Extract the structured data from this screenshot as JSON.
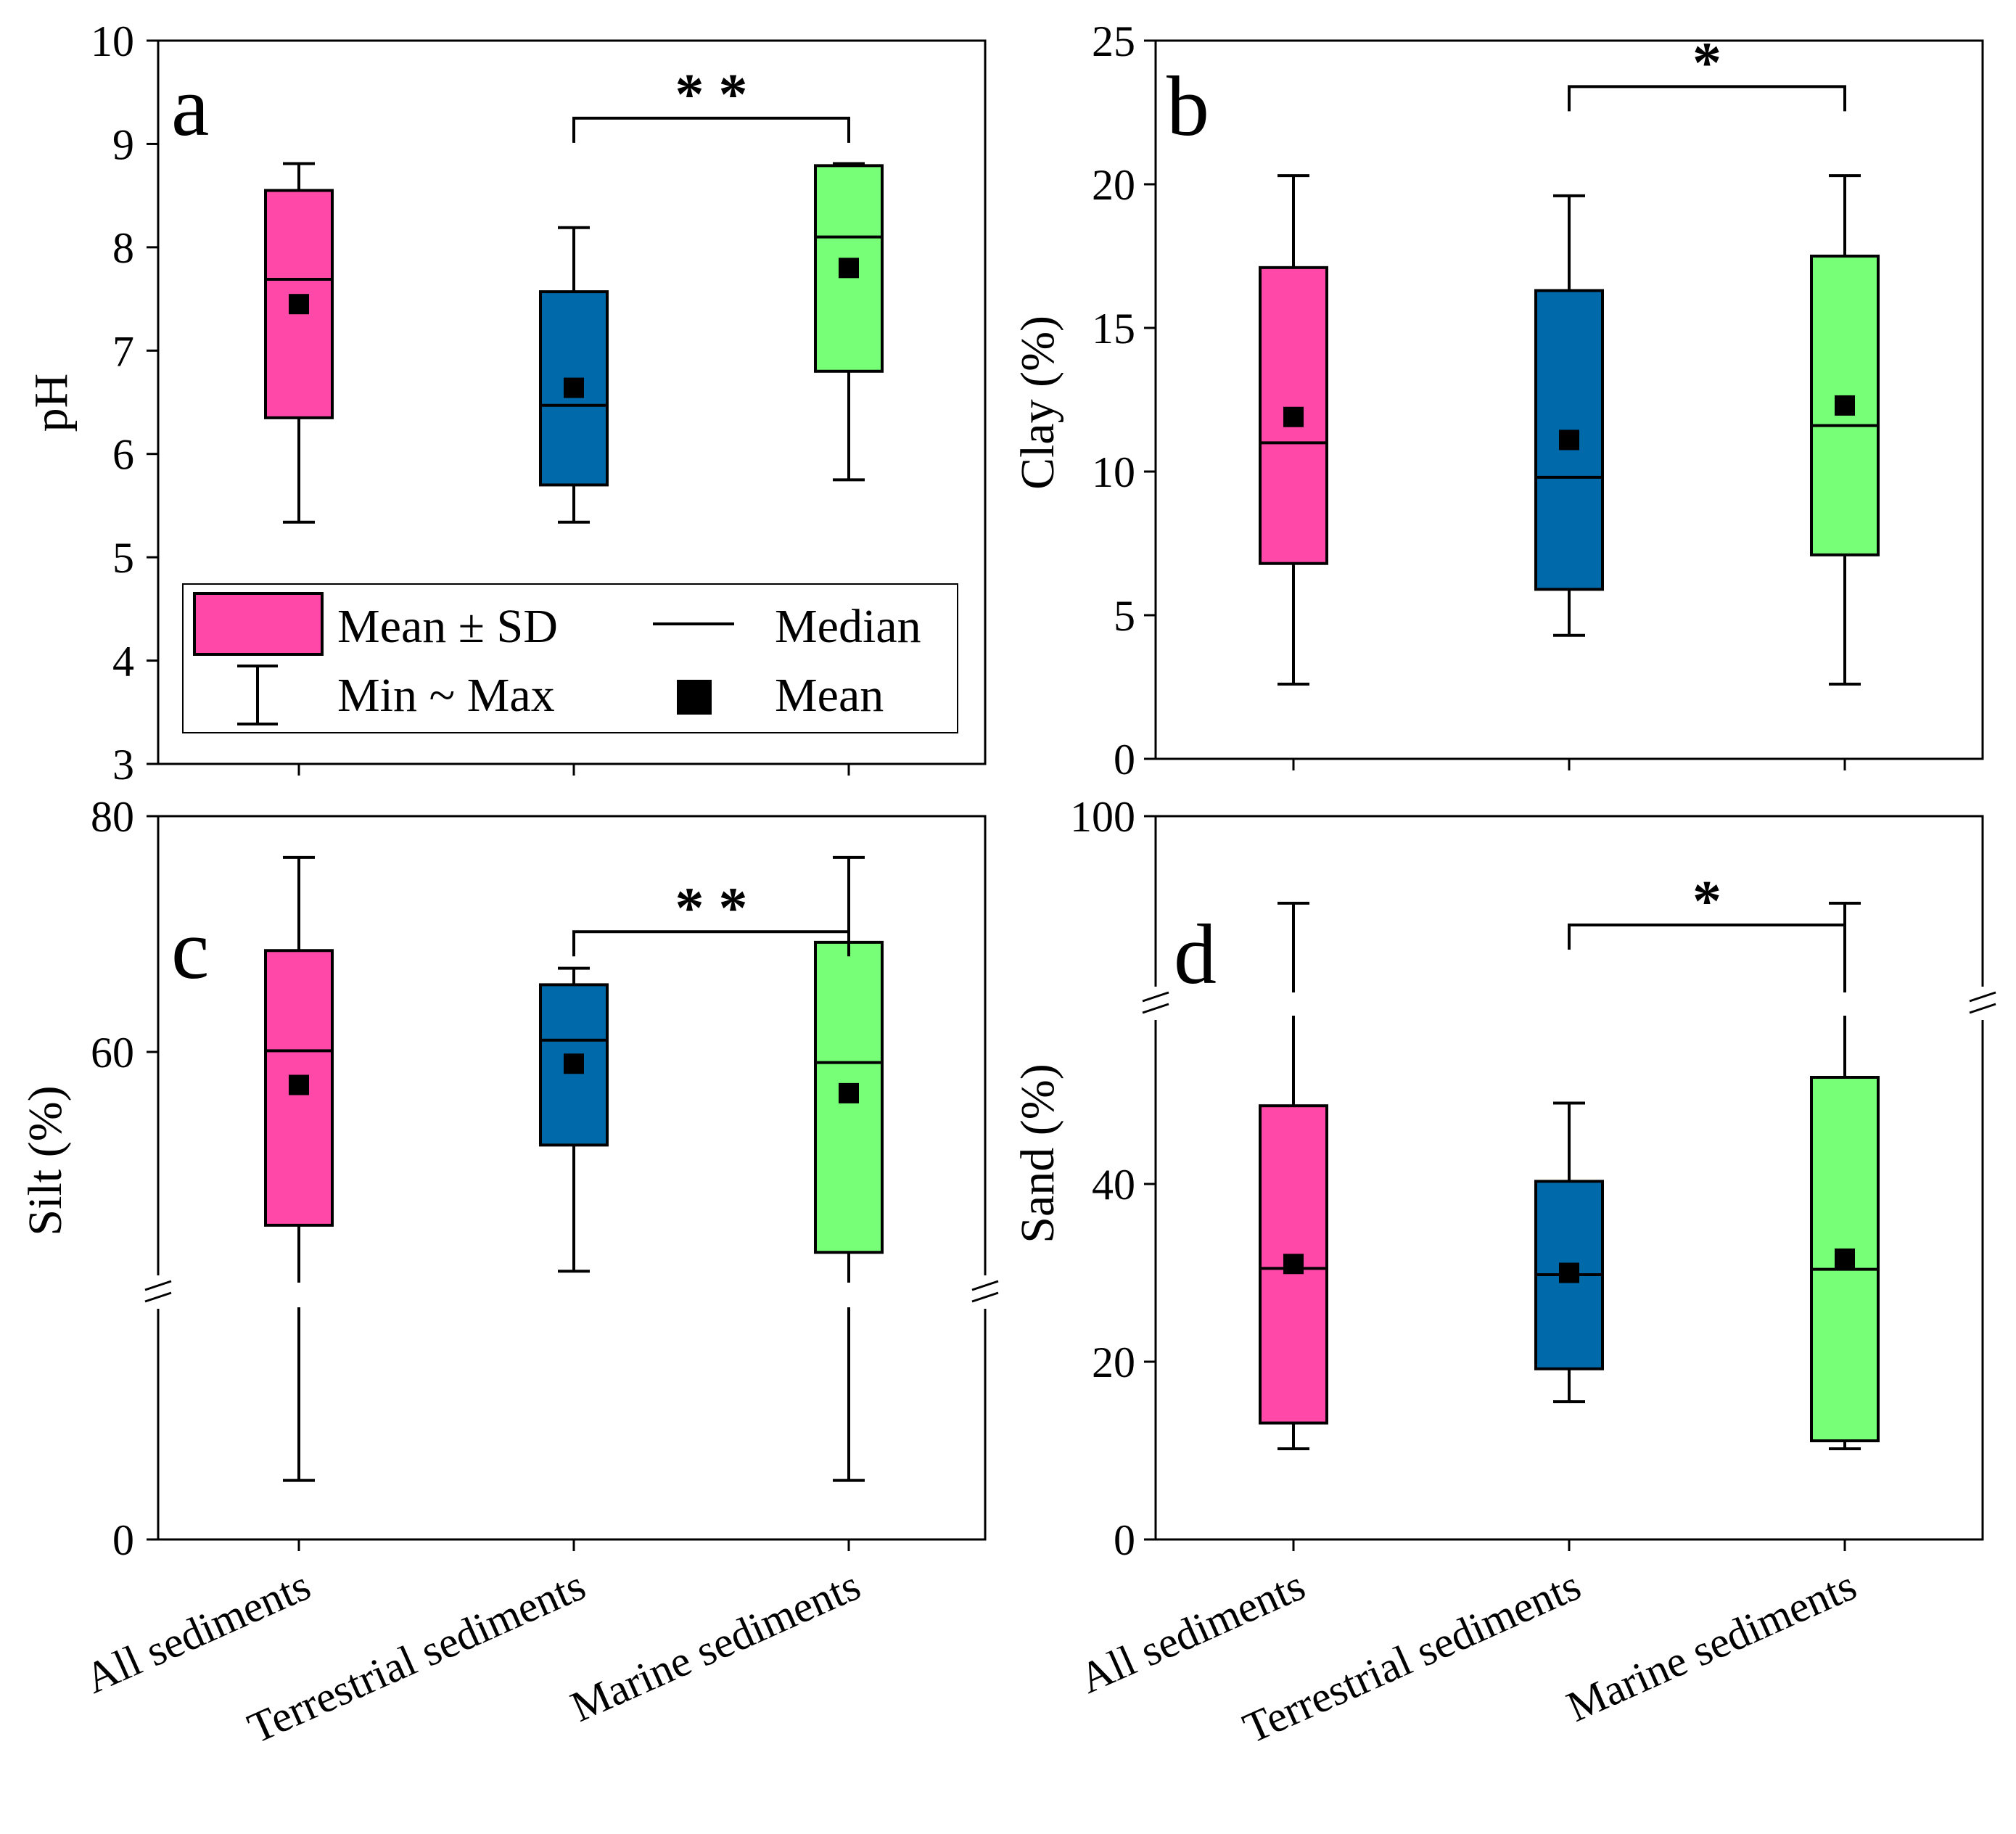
{
  "colors": {
    "all": "#FF48A8",
    "terrestrial": "#0069AA",
    "marine": "#78FF78",
    "stroke": "#000000"
  },
  "legend": {
    "mean_sd": "Mean ± SD",
    "min_max": "Min ~ Max",
    "median": "Median",
    "mean": "Mean"
  },
  "chart_data": [
    {
      "panel": "a",
      "type": "box",
      "ylabel": "pH",
      "ylim": [
        3,
        10
      ],
      "yticks": [
        "3",
        "4",
        "5",
        "6",
        "7",
        "8",
        "9",
        "10"
      ],
      "categories": [
        "All sediments",
        "Terrestrial sediments",
        "Marine sediments"
      ],
      "series": [
        {
          "name": "All sediments",
          "min": 5.34,
          "max": 8.81,
          "sd_low": 6.35,
          "sd_high": 8.55,
          "median": 7.69,
          "mean": 7.45
        },
        {
          "name": "Terrestrial sediments",
          "min": 5.34,
          "max": 8.19,
          "sd_low": 5.7,
          "sd_high": 7.57,
          "median": 6.47,
          "mean": 6.64
        },
        {
          "name": "Marine sediments",
          "min": 5.75,
          "max": 8.81,
          "sd_low": 6.8,
          "sd_high": 8.79,
          "median": 8.1,
          "mean": 7.8
        }
      ],
      "significance": {
        "label": "* *",
        "from": "Terrestrial sediments",
        "to": "Marine sediments",
        "y": 9.25
      }
    },
    {
      "panel": "b",
      "type": "box",
      "ylabel": "Clay (%)",
      "ylim": [
        0,
        25
      ],
      "yticks": [
        "0",
        "5",
        "10",
        "15",
        "20",
        "25"
      ],
      "categories": [
        "All sediments",
        "Terrestrial sediments",
        "Marine sediments"
      ],
      "series": [
        {
          "name": "All sediments",
          "min": 2.6,
          "max": 20.3,
          "sd_low": 6.8,
          "sd_high": 17.1,
          "median": 11.0,
          "mean": 11.9
        },
        {
          "name": "Terrestrial sediments",
          "min": 4.3,
          "max": 19.6,
          "sd_low": 5.9,
          "sd_high": 16.3,
          "median": 9.8,
          "mean": 11.1
        },
        {
          "name": "Marine sediments",
          "min": 2.6,
          "max": 20.3,
          "sd_low": 7.1,
          "sd_high": 17.5,
          "median": 11.6,
          "mean": 12.3
        }
      ],
      "significance": {
        "label": "*",
        "from": "Terrestrial sediments",
        "to": "Marine sediments",
        "y": 23.4
      }
    },
    {
      "panel": "c",
      "type": "box",
      "ylabel": "Silt (%)",
      "ylim": [
        0,
        80
      ],
      "yticks": [
        "0",
        "60",
        "80"
      ],
      "axis_break": "between 0 and 60",
      "categories": [
        "All sediments",
        "Terrestrial sediments",
        "Marine sediments"
      ],
      "series": [
        {
          "name": "All sediments",
          "min": 6,
          "max": 76.5,
          "sd_low": 45.3,
          "sd_high": 68.6,
          "median": 60.1,
          "mean": 57.2
        },
        {
          "name": "Terrestrial sediments",
          "min": 41.4,
          "max": 67.1,
          "sd_low": 52.1,
          "sd_high": 65.7,
          "median": 61.0,
          "mean": 59.0
        },
        {
          "name": "Marine sediments",
          "min": 6,
          "max": 76.5,
          "sd_low": 43.0,
          "sd_high": 69.3,
          "median": 59.1,
          "mean": 56.5
        }
      ],
      "significance": {
        "label": "* *",
        "from": "Terrestrial sediments",
        "to": "Marine sediments",
        "y": 70.2
      }
    },
    {
      "panel": "d",
      "type": "box",
      "ylabel": "Sand (%)",
      "ylim": [
        0,
        100
      ],
      "yticks": [
        "0",
        "20",
        "40",
        "100"
      ],
      "axis_break": "between 40 and 100",
      "categories": [
        "All sediments",
        "Terrestrial sediments",
        "Marine sediments"
      ],
      "series": [
        {
          "name": "All sediments",
          "min": 10.2,
          "max": 88,
          "sd_low": 13.1,
          "sd_high": 48.8,
          "median": 30.5,
          "mean": 31.0
        },
        {
          "name": "Terrestrial sediments",
          "min": 15.5,
          "max": 49.1,
          "sd_low": 19.2,
          "sd_high": 40.3,
          "median": 29.8,
          "mean": 30.0
        },
        {
          "name": "Marine sediments",
          "min": 10.2,
          "max": 88,
          "sd_low": 11.1,
          "sd_high": 52.0,
          "median": 30.4,
          "mean": 31.6
        }
      ],
      "significance": {
        "label": "*",
        "from": "Terrestrial sediments",
        "to": "Marine sediments",
        "y": 85
      }
    }
  ]
}
